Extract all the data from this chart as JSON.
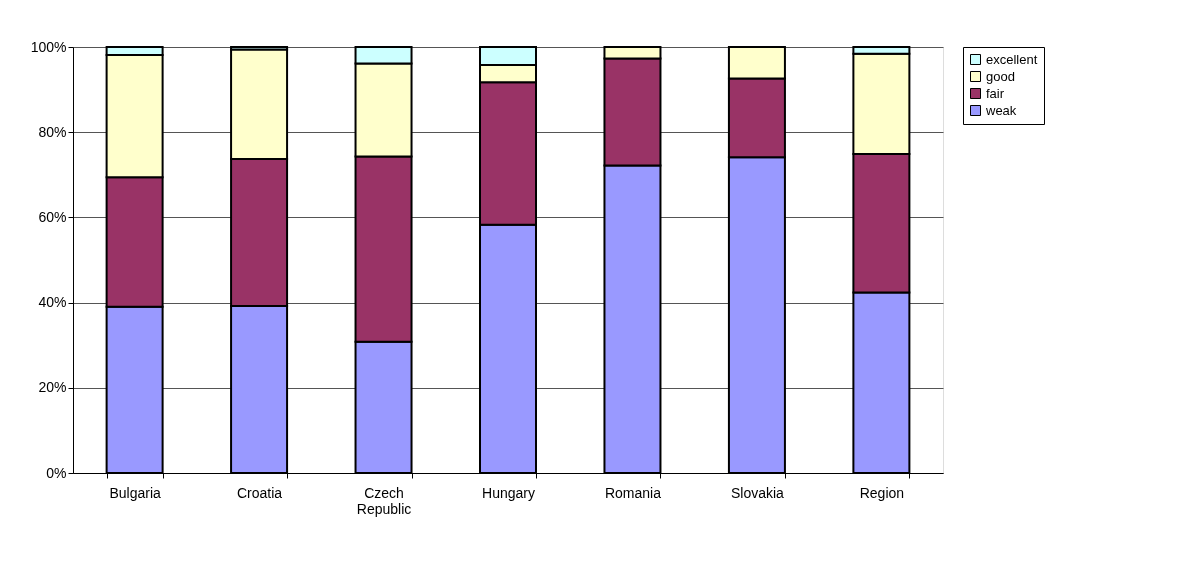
{
  "chart_data": {
    "type": "bar",
    "stacked": true,
    "categories": [
      "Bulgaria",
      "Croatia",
      "Czech Republic",
      "Hungary",
      "Romania",
      "Slovakia",
      "Region"
    ],
    "series": [
      {
        "name": "weak",
        "color": "#9999ff",
        "values": [
          39.0,
          39.2,
          30.8,
          58.3,
          72.2,
          74.1,
          42.4
        ]
      },
      {
        "name": "fair",
        "color": "#993366",
        "values": [
          30.4,
          34.5,
          43.5,
          33.4,
          25.1,
          18.5,
          32.5
        ]
      },
      {
        "name": "good",
        "color": "#ffffcc",
        "values": [
          28.7,
          25.7,
          21.8,
          4.1,
          2.7,
          7.4,
          23.5
        ]
      },
      {
        "name": "excellent",
        "color": "#ccffff",
        "values": [
          1.9,
          0.6,
          3.9,
          4.2,
          null,
          null,
          1.6
        ]
      }
    ],
    "ylim": [
      0,
      100
    ],
    "yticks": [
      {
        "value": 0,
        "label": "0%"
      },
      {
        "value": 20,
        "label": "20%"
      },
      {
        "value": 40,
        "label": "40%"
      },
      {
        "value": 60,
        "label": "60%"
      },
      {
        "value": 80,
        "label": "80%"
      },
      {
        "value": 100,
        "label": "100%"
      }
    ],
    "grid": "y",
    "legend": "right"
  }
}
